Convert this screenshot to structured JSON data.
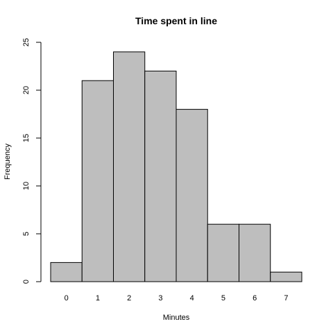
{
  "chart_data": {
    "type": "bar",
    "title": "Time spent in line",
    "x_label": "Minutes",
    "y_label": "Frequency",
    "categories": [
      "0",
      "1",
      "2",
      "3",
      "4",
      "5",
      "6",
      "7"
    ],
    "values": [
      2,
      21,
      24,
      22,
      18,
      6,
      6,
      1
    ],
    "color": "#bebebe",
    "ylim": [
      0,
      25
    ],
    "yticks": [
      0,
      5,
      10,
      15,
      20,
      25
    ]
  }
}
